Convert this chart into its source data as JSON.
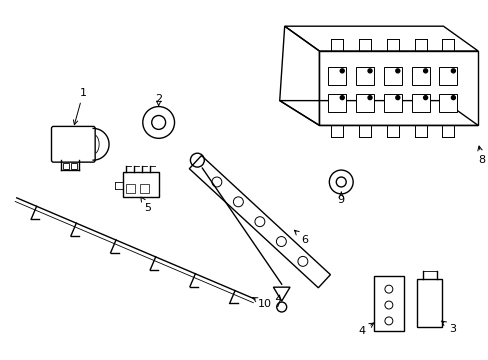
{
  "background_color": "#ffffff",
  "line_color": "#000000",
  "line_width": 1.0,
  "figure_width": 4.89,
  "figure_height": 3.6,
  "dpi": 100
}
